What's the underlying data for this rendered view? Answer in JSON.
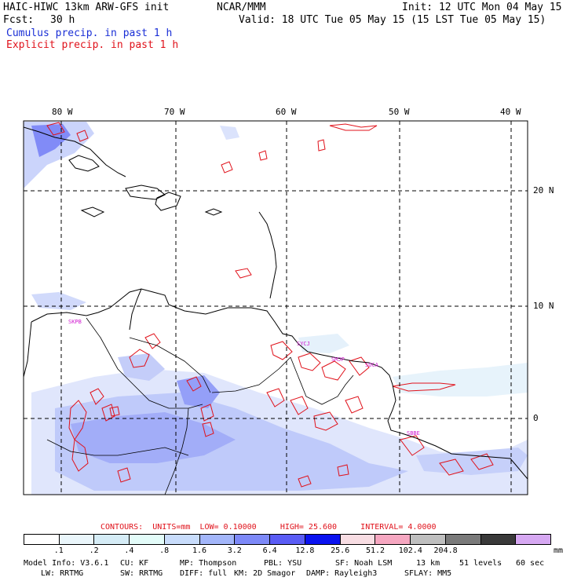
{
  "header": {
    "model": "HAIC-HIWC 13km ARW-GFS init",
    "org": "NCAR/MMM",
    "init": "Init: 12 UTC Mon 04 May 15",
    "fcst_label": "Fcst:",
    "fcst_value": "30 h",
    "valid": "Valid: 18 UTC Tue 05 May 15 (15 LST Tue 05 May 15)",
    "cumulus": "Cumulus precip. in past 1 h",
    "explicit": "Explicit precip. in past 1 h"
  },
  "map": {
    "lon_labels": [
      "80 W",
      "70 W",
      "60 W",
      "50 W",
      "40 W"
    ],
    "lat_labels": [
      "20 N",
      "10 N",
      "0"
    ],
    "stations": [
      "SKPB",
      "SYCJ",
      "SMJP",
      "SOCA",
      "SBBE"
    ]
  },
  "contours": {
    "label": "CONTOURS:",
    "units": "UNITS=mm",
    "low": "LOW= 0.10000",
    "high": "HIGH= 25.600",
    "interval": "INTERVAL= 4.0000"
  },
  "legend": {
    "colors": [
      "#ffffff",
      "#eaf6fb",
      "#d5ecf6",
      "#e3fcf9",
      "#c8dcfb",
      "#a3b6fa",
      "#7d89f8",
      "#5a5cf5",
      "#0a12f0",
      "#f8dde3",
      "#f6a7c1",
      "#bfbfbf",
      "#7a7a7a",
      "#3a3a3a",
      "#d6a8f2"
    ],
    "labels": [
      ".1",
      ".2",
      ".4",
      ".8",
      "1.6",
      "3.2",
      "6.4",
      "12.8",
      "25.6",
      "51.2",
      "102.4",
      "204.8"
    ],
    "unit": "mm"
  },
  "model_info": {
    "line1": [
      {
        "text": "Model Info: V3.6.1"
      },
      {
        "text": "CU: KF"
      },
      {
        "text": "MP: Thompson"
      },
      {
        "text": "PBL: YSU"
      },
      {
        "text": "SF: Noah LSM"
      },
      {
        "text": "13 km"
      },
      {
        "text": "51 levels"
      },
      {
        "text": "60 sec"
      }
    ],
    "line2": [
      {
        "text": "LW: RRTMG"
      },
      {
        "text": "SW: RRTMG"
      },
      {
        "text": "DIFF: full"
      },
      {
        "text": "KM: 2D Smagor"
      },
      {
        "text": "DAMP: Rayleigh3"
      },
      {
        "text": "SFLAY: MM5"
      }
    ]
  }
}
